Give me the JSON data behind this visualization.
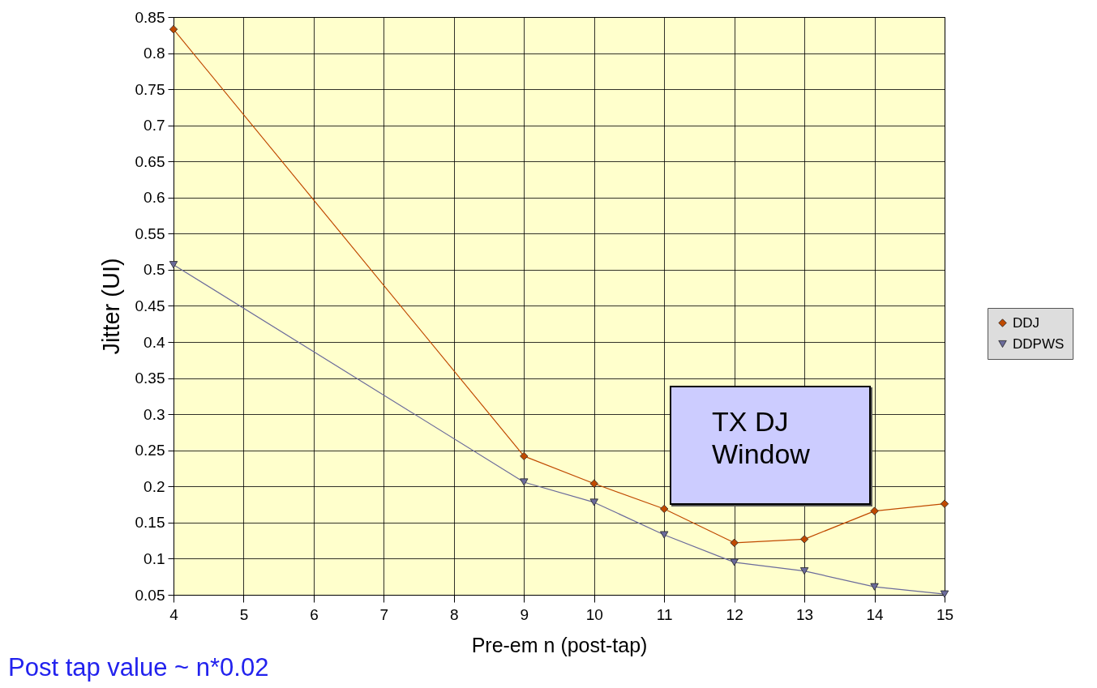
{
  "chart_data": {
    "type": "line",
    "xlabel": "Pre-em n (post-tap)",
    "ylabel": "Jitter (UI)",
    "x": [
      4,
      9,
      10,
      11,
      12,
      13,
      14,
      15
    ],
    "series": [
      {
        "name": "DDJ",
        "color": "#c04a00",
        "marker": "diamond",
        "values": [
          0.833,
          0.242,
          0.204,
          0.169,
          0.122,
          0.127,
          0.166,
          0.176
        ]
      },
      {
        "name": "DDPWS",
        "color": "#6b6b9b",
        "marker": "triangle-down",
        "values": [
          0.507,
          0.206,
          0.178,
          0.133,
          0.095,
          0.083,
          0.061,
          0.051
        ]
      }
    ],
    "xlim": [
      4,
      15
    ],
    "xticks": [
      4,
      5,
      6,
      7,
      8,
      9,
      10,
      11,
      12,
      13,
      14,
      15
    ],
    "ylim": [
      0.05,
      0.85
    ],
    "yticks": [
      0.05,
      0.1,
      0.15,
      0.2,
      0.25,
      0.3,
      0.35,
      0.4,
      0.45,
      0.5,
      0.55,
      0.6,
      0.65,
      0.7,
      0.75,
      0.8,
      0.85
    ],
    "grid": true,
    "legend": "right",
    "line_style": "solid",
    "annotations": [
      "TX DJ Window",
      "Post tap value ~ n*0.02"
    ]
  }
}
